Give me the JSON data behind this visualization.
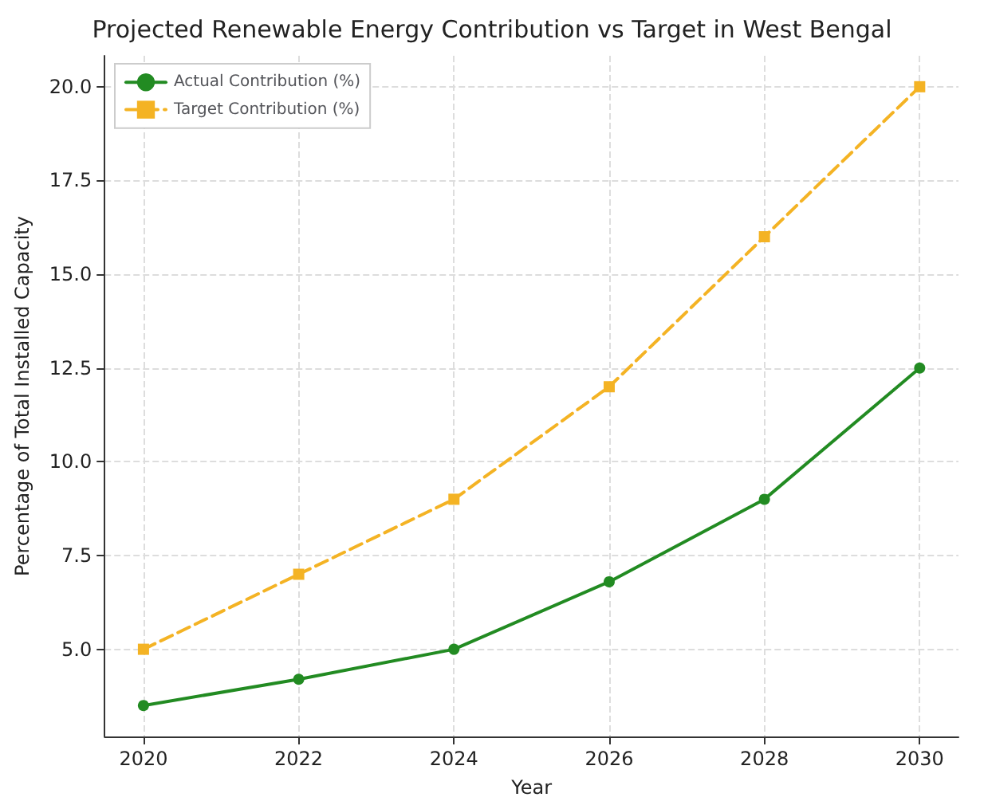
{
  "chart_data": {
    "type": "line",
    "title": "Projected Renewable Energy Contribution vs Target in West Bengal",
    "xlabel": "Year",
    "ylabel": "Percentage of Total Installed Capacity",
    "x": [
      2020,
      2022,
      2024,
      2026,
      2028,
      2030
    ],
    "series": [
      {
        "name": "Actual Contribution (%)",
        "color": "#228b22",
        "values": [
          3.5,
          4.2,
          5.0,
          6.8,
          9.0,
          12.5
        ],
        "marker": "circle",
        "line_style": "solid"
      },
      {
        "name": "Target Contribution (%)",
        "color": "#f4b324",
        "values": [
          5,
          7,
          9,
          12,
          16,
          20
        ],
        "marker": "square",
        "line_style": "dashed"
      }
    ],
    "xlim": [
      2019.5,
      2030.5
    ],
    "xticks": [
      2020,
      2022,
      2024,
      2026,
      2028,
      2030
    ],
    "ylim": [
      2.675,
      20.825
    ],
    "yticks": [
      {
        "value": 5,
        "label": "5.0"
      },
      {
        "value": 7.5,
        "label": "7.5"
      },
      {
        "value": 10,
        "label": "10.0"
      },
      {
        "value": 12.5,
        "label": "12.5"
      },
      {
        "value": 15,
        "label": "15.0"
      },
      {
        "value": 17.5,
        "label": "17.5"
      },
      {
        "value": 20,
        "label": "20.0"
      }
    ],
    "grid": true,
    "legend": "top left"
  }
}
